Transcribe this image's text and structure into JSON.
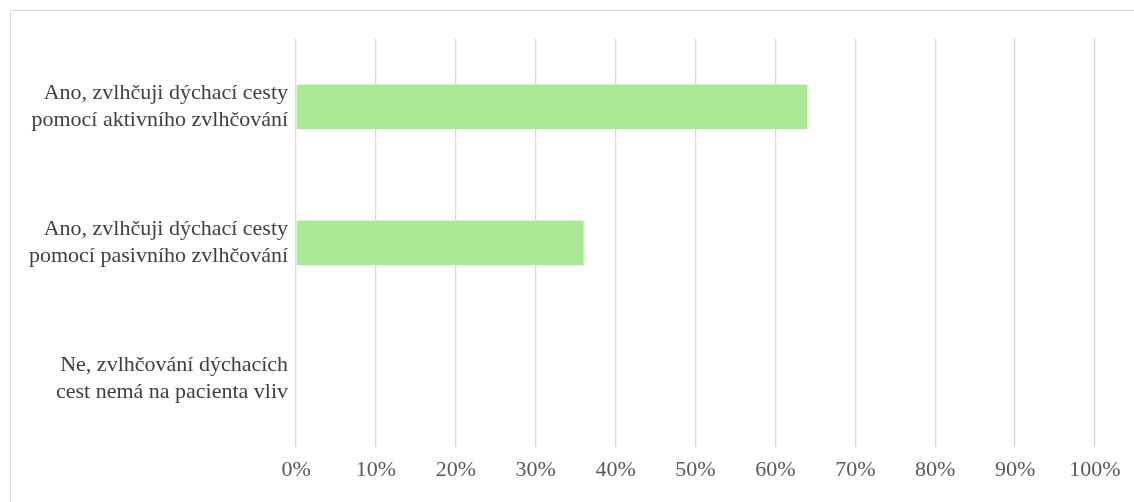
{
  "chart_data": {
    "type": "bar",
    "orientation": "horizontal",
    "categories": [
      "Ano, zvlhčuji dýchací cesty pomocí aktivního zvlhčování",
      "Ano, zvlhčuji dýchací cesty pomocí pasivního zvlhčování",
      "Ne, zvlhčování dýchacích cest nemá na pacienta vliv"
    ],
    "values": [
      64,
      36,
      0
    ],
    "color": "#a9eb94",
    "xlim": [
      0,
      100
    ],
    "xticks": [
      {
        "value": 0,
        "label": "0%"
      },
      {
        "value": 10,
        "label": "10%"
      },
      {
        "value": 20,
        "label": "20%"
      },
      {
        "value": 30,
        "label": "30%"
      },
      {
        "value": 40,
        "label": "40%"
      },
      {
        "value": 50,
        "label": "50%"
      },
      {
        "value": 60,
        "label": "60%"
      },
      {
        "value": 70,
        "label": "70%"
      },
      {
        "value": 80,
        "label": "80%"
      },
      {
        "value": 90,
        "label": "90%"
      },
      {
        "value": 100,
        "label": "100%"
      }
    ],
    "grid": "x",
    "legend": false
  }
}
